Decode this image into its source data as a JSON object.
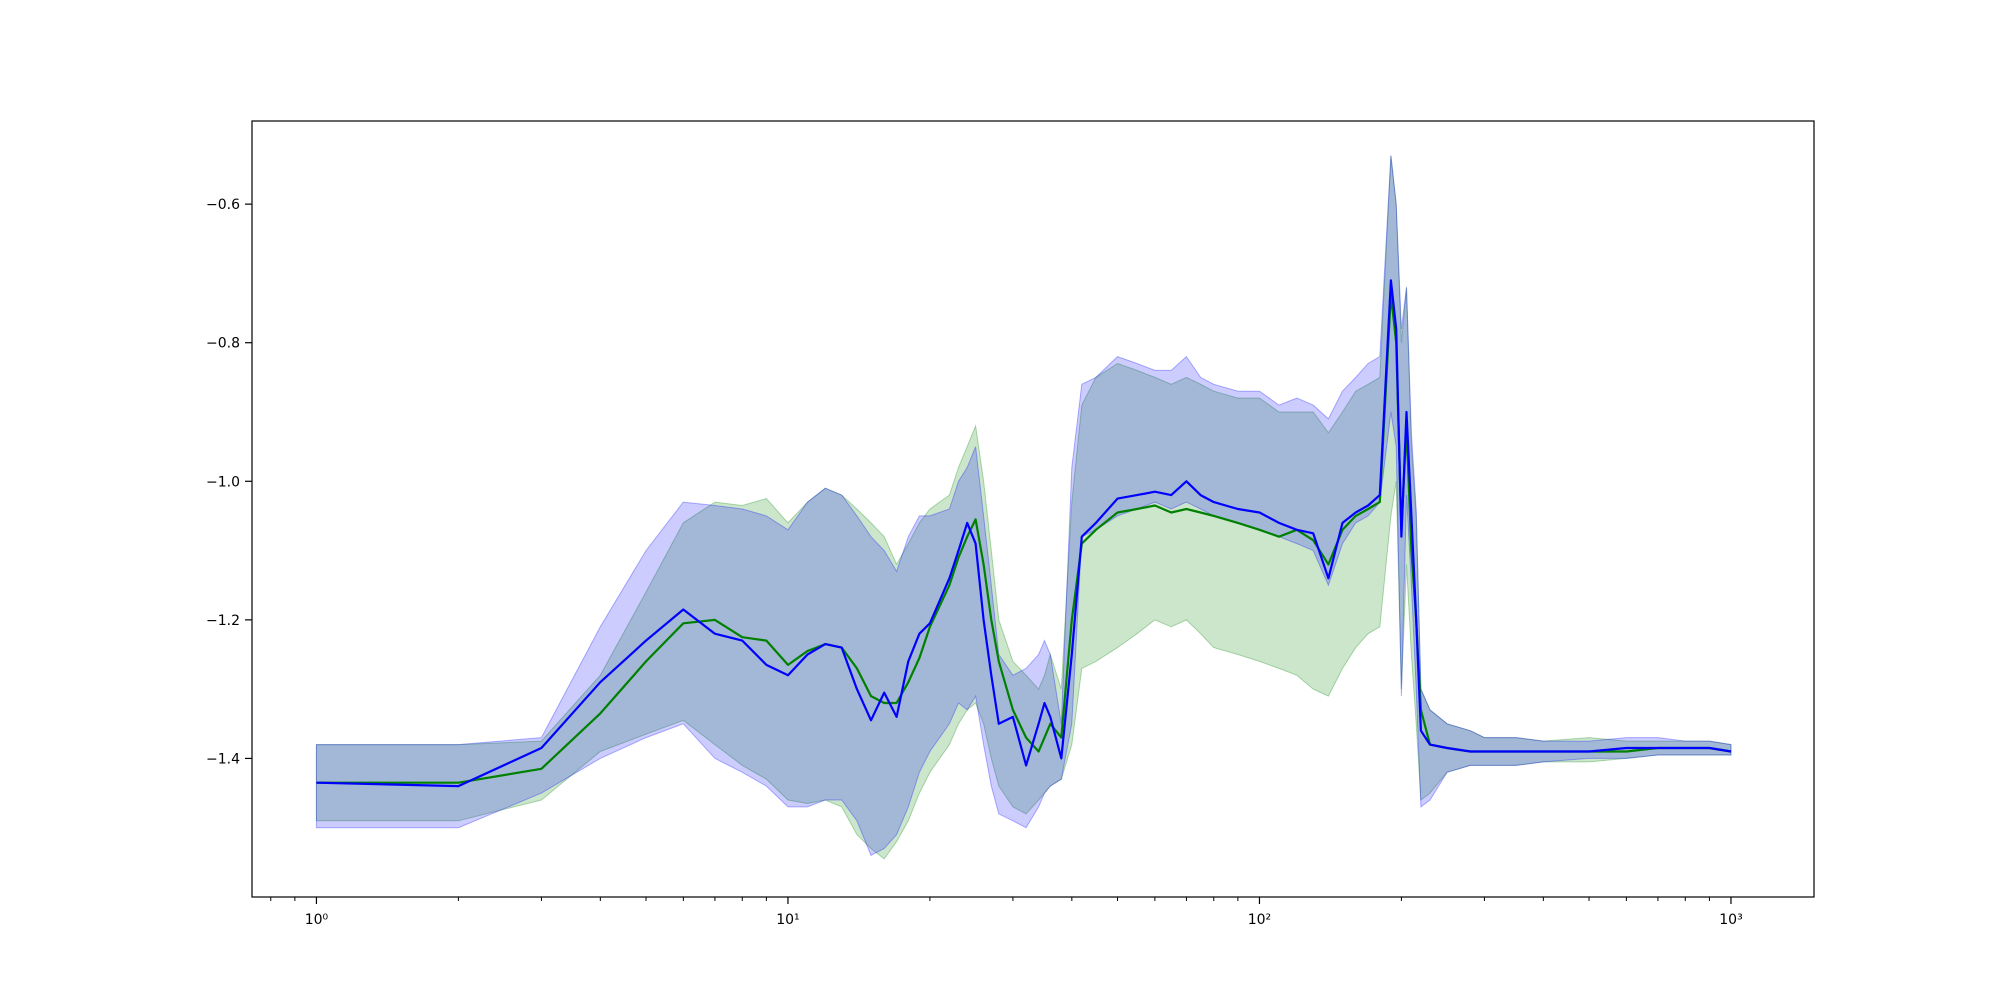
{
  "chart_data": {
    "type": "line",
    "title": "",
    "xlabel": "",
    "ylabel": "",
    "xscale": "log",
    "xlim": [
      0.73,
      1500
    ],
    "ylim": [
      -1.6,
      -0.48
    ],
    "grid": false,
    "legend": "none",
    "x_ticks": [
      {
        "value": 1,
        "label": "10⁰"
      },
      {
        "value": 10,
        "label": "10¹"
      },
      {
        "value": 100,
        "label": "10²"
      },
      {
        "value": 1000,
        "label": "10³"
      }
    ],
    "y_ticks": [
      {
        "value": -1.4,
        "label": "−1.4"
      },
      {
        "value": -1.2,
        "label": "−1.2"
      },
      {
        "value": -1.0,
        "label": "−1.0"
      },
      {
        "value": -0.8,
        "label": "−0.8"
      },
      {
        "value": -0.6,
        "label": "−0.6"
      }
    ],
    "series": [
      {
        "color": "#008000",
        "band_color": "#008000",
        "band_opacity": 0.2,
        "x": [
          1,
          2,
          3,
          4,
          5,
          6,
          7,
          8,
          9,
          10,
          11,
          12,
          13,
          14,
          15,
          16,
          17,
          18,
          19,
          20,
          22,
          23,
          24,
          25,
          26,
          27,
          28,
          30,
          32,
          34,
          35,
          36,
          38,
          40,
          42,
          45,
          50,
          55,
          60,
          65,
          70,
          75,
          80,
          90,
          100,
          110,
          120,
          130,
          140,
          150,
          160,
          170,
          180,
          190,
          195,
          200,
          205,
          210,
          215,
          220,
          230,
          250,
          280,
          300,
          350,
          400,
          500,
          600,
          700,
          800,
          900,
          1000
        ],
        "y": [
          -1.435,
          -1.435,
          -1.415,
          -1.335,
          -1.26,
          -1.205,
          -1.2,
          -1.225,
          -1.23,
          -1.265,
          -1.245,
          -1.235,
          -1.24,
          -1.27,
          -1.31,
          -1.32,
          -1.32,
          -1.29,
          -1.255,
          -1.21,
          -1.15,
          -1.11,
          -1.08,
          -1.055,
          -1.12,
          -1.2,
          -1.26,
          -1.33,
          -1.37,
          -1.39,
          -1.37,
          -1.35,
          -1.37,
          -1.2,
          -1.09,
          -1.07,
          -1.045,
          -1.04,
          -1.035,
          -1.045,
          -1.04,
          -1.045,
          -1.05,
          -1.06,
          -1.07,
          -1.08,
          -1.07,
          -1.085,
          -1.12,
          -1.07,
          -1.05,
          -1.04,
          -1.03,
          -0.73,
          -0.8,
          -1.07,
          -0.92,
          -1.1,
          -1.2,
          -1.33,
          -1.38,
          -1.385,
          -1.39,
          -1.39,
          -1.39,
          -1.39,
          -1.39,
          -1.39,
          -1.385,
          -1.385,
          -1.385,
          -1.39
        ],
        "lower": [
          -1.49,
          -1.49,
          -1.46,
          -1.39,
          -1.365,
          -1.345,
          -1.38,
          -1.41,
          -1.43,
          -1.46,
          -1.465,
          -1.46,
          -1.47,
          -1.51,
          -1.53,
          -1.545,
          -1.52,
          -1.49,
          -1.45,
          -1.42,
          -1.38,
          -1.35,
          -1.33,
          -1.32,
          -1.35,
          -1.4,
          -1.44,
          -1.47,
          -1.48,
          -1.46,
          -1.45,
          -1.44,
          -1.43,
          -1.38,
          -1.27,
          -1.26,
          -1.24,
          -1.22,
          -1.2,
          -1.21,
          -1.2,
          -1.22,
          -1.24,
          -1.25,
          -1.26,
          -1.27,
          -1.28,
          -1.3,
          -1.31,
          -1.27,
          -1.24,
          -1.22,
          -1.21,
          -1.05,
          -1.0,
          -1.3,
          -1.12,
          -1.25,
          -1.35,
          -1.46,
          -1.45,
          -1.42,
          -1.41,
          -1.41,
          -1.41,
          -1.405,
          -1.405,
          -1.4,
          -1.395,
          -1.395,
          -1.395,
          -1.395
        ],
        "upper": [
          -1.38,
          -1.38,
          -1.375,
          -1.28,
          -1.16,
          -1.06,
          -1.03,
          -1.035,
          -1.025,
          -1.06,
          -1.03,
          -1.01,
          -1.02,
          -1.04,
          -1.06,
          -1.08,
          -1.12,
          -1.09,
          -1.06,
          -1.04,
          -1.02,
          -0.98,
          -0.95,
          -0.92,
          -1.0,
          -1.1,
          -1.2,
          -1.26,
          -1.28,
          -1.3,
          -1.28,
          -1.25,
          -1.3,
          -1.03,
          -0.89,
          -0.85,
          -0.83,
          -0.84,
          -0.85,
          -0.86,
          -0.85,
          -0.86,
          -0.87,
          -0.88,
          -0.88,
          -0.9,
          -0.9,
          -0.9,
          -0.93,
          -0.9,
          -0.87,
          -0.86,
          -0.85,
          -0.53,
          -0.6,
          -0.8,
          -0.72,
          -0.95,
          -1.05,
          -1.3,
          -1.33,
          -1.35,
          -1.36,
          -1.37,
          -1.37,
          -1.375,
          -1.37,
          -1.375,
          -1.375,
          -1.375,
          -1.375,
          -1.38
        ]
      },
      {
        "color": "#0000ff",
        "band_color": "#0000ff",
        "band_opacity": 0.2,
        "x": [
          1,
          2,
          3,
          4,
          5,
          6,
          7,
          8,
          9,
          10,
          11,
          12,
          13,
          14,
          15,
          16,
          17,
          18,
          19,
          20,
          22,
          23,
          24,
          25,
          26,
          27,
          28,
          30,
          32,
          34,
          35,
          36,
          38,
          40,
          42,
          45,
          50,
          55,
          60,
          65,
          70,
          75,
          80,
          90,
          100,
          110,
          120,
          130,
          140,
          150,
          160,
          170,
          180,
          190,
          195,
          200,
          205,
          210,
          215,
          220,
          230,
          250,
          280,
          300,
          350,
          400,
          500,
          600,
          700,
          800,
          900,
          1000
        ],
        "y": [
          -1.435,
          -1.44,
          -1.385,
          -1.29,
          -1.23,
          -1.185,
          -1.22,
          -1.23,
          -1.265,
          -1.28,
          -1.25,
          -1.235,
          -1.24,
          -1.3,
          -1.345,
          -1.305,
          -1.34,
          -1.26,
          -1.22,
          -1.205,
          -1.14,
          -1.1,
          -1.06,
          -1.09,
          -1.2,
          -1.28,
          -1.35,
          -1.34,
          -1.41,
          -1.35,
          -1.32,
          -1.34,
          -1.4,
          -1.25,
          -1.08,
          -1.06,
          -1.025,
          -1.02,
          -1.015,
          -1.02,
          -1.0,
          -1.02,
          -1.03,
          -1.04,
          -1.045,
          -1.06,
          -1.07,
          -1.075,
          -1.14,
          -1.06,
          -1.045,
          -1.035,
          -1.02,
          -0.71,
          -0.78,
          -1.08,
          -0.9,
          -1.05,
          -1.2,
          -1.36,
          -1.38,
          -1.385,
          -1.39,
          -1.39,
          -1.39,
          -1.39,
          -1.39,
          -1.385,
          -1.385,
          -1.385,
          -1.385,
          -1.39
        ],
        "lower": [
          -1.5,
          -1.5,
          -1.45,
          -1.4,
          -1.37,
          -1.35,
          -1.4,
          -1.42,
          -1.44,
          -1.47,
          -1.47,
          -1.46,
          -1.46,
          -1.49,
          -1.54,
          -1.53,
          -1.51,
          -1.47,
          -1.42,
          -1.39,
          -1.35,
          -1.32,
          -1.33,
          -1.31,
          -1.38,
          -1.44,
          -1.48,
          -1.49,
          -1.5,
          -1.47,
          -1.45,
          -1.44,
          -1.43,
          -1.35,
          -1.08,
          -1.07,
          -1.05,
          -1.04,
          -1.03,
          -1.04,
          -1.03,
          -1.04,
          -1.05,
          -1.06,
          -1.07,
          -1.08,
          -1.09,
          -1.1,
          -1.15,
          -1.09,
          -1.06,
          -1.05,
          -1.03,
          -0.9,
          -0.95,
          -1.31,
          -1.02,
          -1.15,
          -1.3,
          -1.47,
          -1.46,
          -1.42,
          -1.41,
          -1.41,
          -1.41,
          -1.405,
          -1.4,
          -1.4,
          -1.395,
          -1.395,
          -1.395,
          -1.395
        ],
        "upper": [
          -1.38,
          -1.38,
          -1.37,
          -1.21,
          -1.1,
          -1.03,
          -1.035,
          -1.04,
          -1.05,
          -1.07,
          -1.03,
          -1.01,
          -1.02,
          -1.05,
          -1.08,
          -1.1,
          -1.13,
          -1.08,
          -1.05,
          -1.05,
          -1.04,
          -1.0,
          -0.98,
          -0.95,
          -1.05,
          -1.15,
          -1.25,
          -1.28,
          -1.27,
          -1.25,
          -1.23,
          -1.25,
          -1.35,
          -0.98,
          -0.86,
          -0.85,
          -0.82,
          -0.83,
          -0.84,
          -0.84,
          -0.82,
          -0.85,
          -0.86,
          -0.87,
          -0.87,
          -0.89,
          -0.88,
          -0.89,
          -0.91,
          -0.87,
          -0.85,
          -0.83,
          -0.82,
          -0.53,
          -0.6,
          -0.78,
          -0.72,
          -0.93,
          -1.04,
          -1.3,
          -1.33,
          -1.35,
          -1.36,
          -1.37,
          -1.37,
          -1.375,
          -1.375,
          -1.37,
          -1.37,
          -1.375,
          -1.375,
          -1.38
        ]
      }
    ]
  }
}
